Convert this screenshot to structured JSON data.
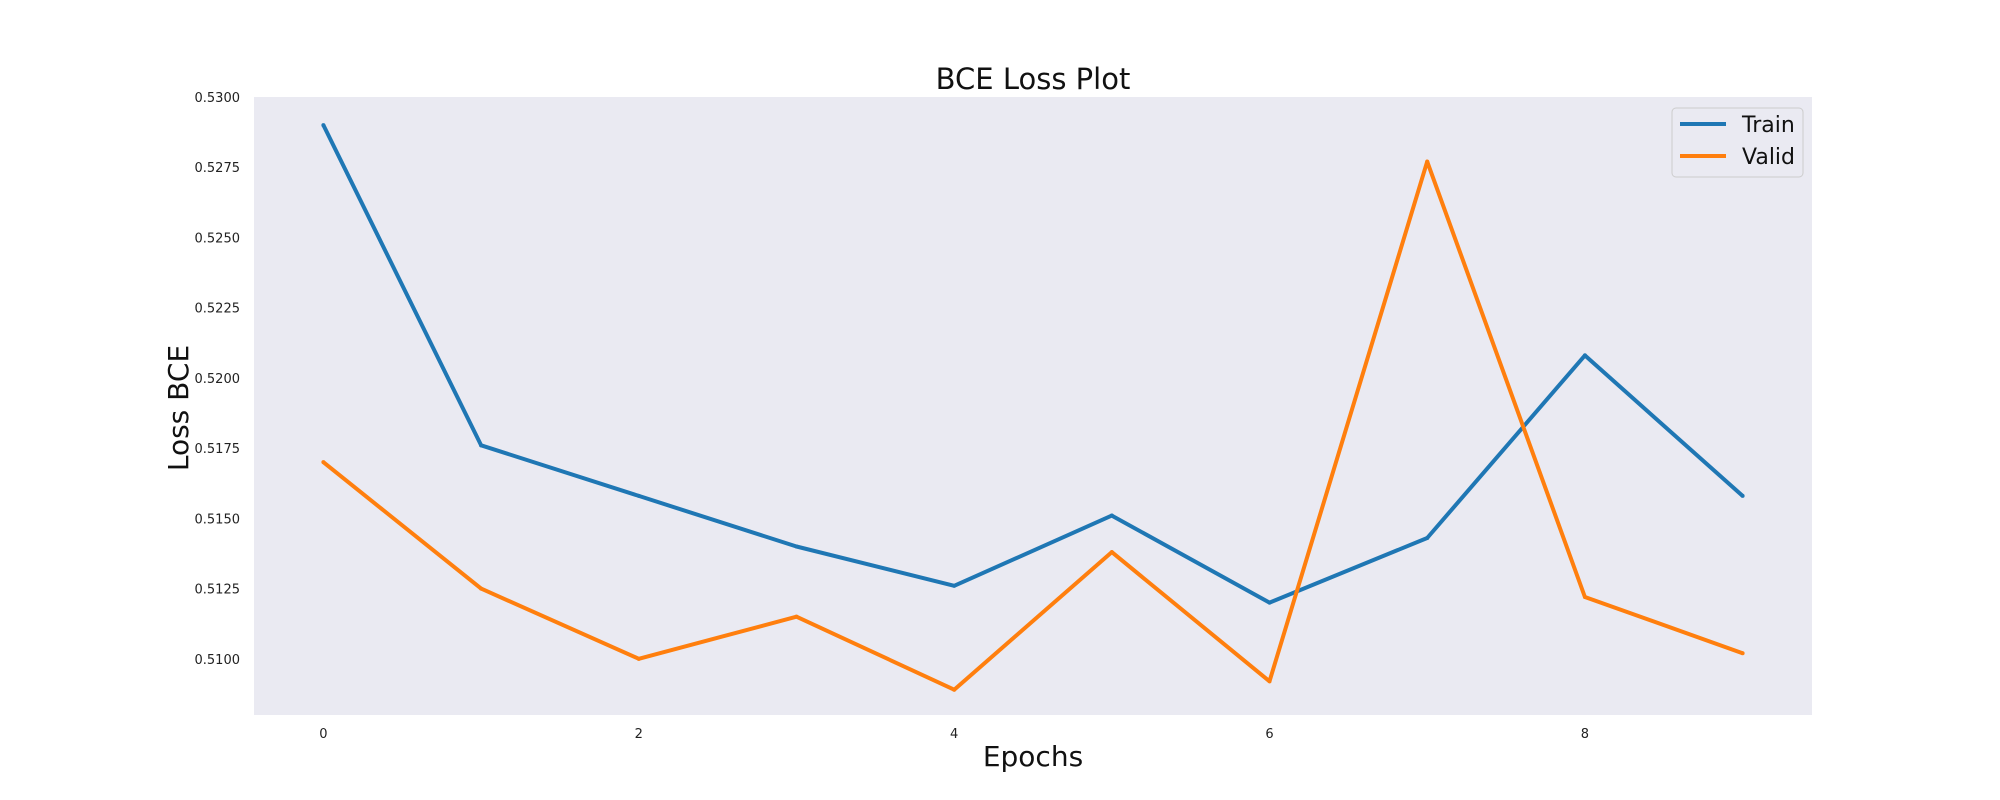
{
  "chart_data": {
    "type": "line",
    "title": "BCE Loss Plot",
    "xlabel": "Epochs",
    "ylabel": "Loss BCE",
    "x": [
      0,
      1,
      2,
      3,
      4,
      5,
      6,
      7,
      8,
      9
    ],
    "x_ticks": [
      "0",
      "2",
      "4",
      "6",
      "8"
    ],
    "x_tick_values": [
      0,
      2,
      4,
      6,
      8
    ],
    "y_ticks": [
      "0.5100",
      "0.5125",
      "0.5150",
      "0.5175",
      "0.5200",
      "0.5225",
      "0.5250",
      "0.5275",
      "0.5300"
    ],
    "y_tick_values": [
      0.51,
      0.5125,
      0.515,
      0.5175,
      0.52,
      0.5225,
      0.525,
      0.5275,
      0.53
    ],
    "xlim": [
      -0.44,
      9.44
    ],
    "ylim": [
      0.508,
      0.53
    ],
    "grid": false,
    "legend_position": "top-right",
    "background": "#eaeaf2",
    "series": [
      {
        "name": "Train",
        "color": "#1f77b4",
        "values": [
          0.529,
          0.5176,
          0.5158,
          0.514,
          0.5126,
          0.5151,
          0.512,
          0.5143,
          0.5208,
          0.5158
        ]
      },
      {
        "name": "Valid",
        "color": "#ff7f0e",
        "values": [
          0.517,
          0.5125,
          0.51,
          0.5115,
          0.5089,
          0.5138,
          0.5092,
          0.5277,
          0.5122,
          0.5102
        ]
      }
    ]
  }
}
